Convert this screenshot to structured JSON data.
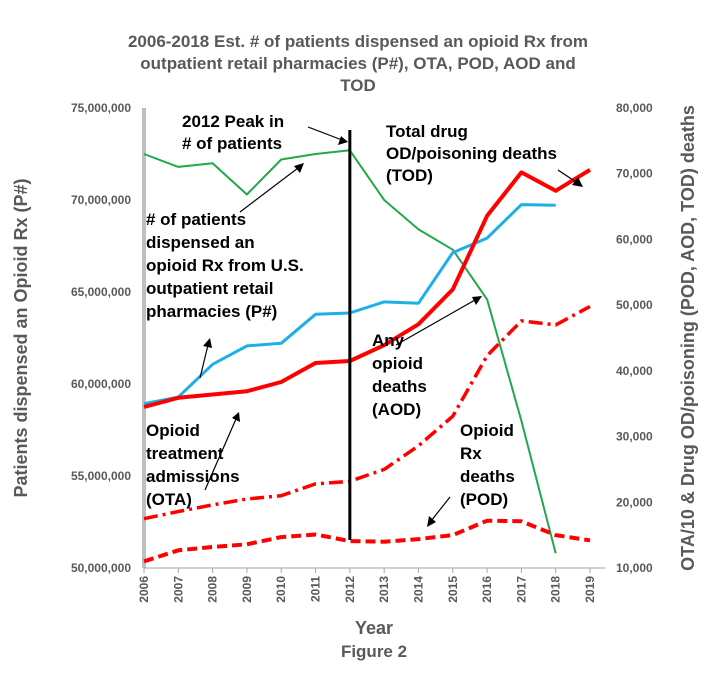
{
  "chart_data": {
    "type": "line",
    "title_lines": [
      "2006-2018 Est. # of patients dispensed an opioid Rx from",
      "outpatient retail pharmacies (P#), OTA, POD, AOD and",
      "TOD"
    ],
    "xlabel": "Year",
    "figure_label": "Figure 2",
    "ylabel_left": "Patients dispensed an Opioid Rx  (P#)",
    "ylabel_right": "OTA/10 & Drug OD/poisoning (POD, AOD, TOD) deaths",
    "x": [
      2006,
      2007,
      2008,
      2009,
      2010,
      2011,
      2012,
      2013,
      2014,
      2015,
      2016,
      2017,
      2018,
      2019
    ],
    "ylim_left": [
      50000000,
      75000000
    ],
    "ylim_right": [
      10000,
      80000
    ],
    "left_ticks": [
      "50,000,000",
      "55,000,000",
      "60,000,000",
      "65,000,000",
      "70,000,000",
      "75,000,000"
    ],
    "left_tick_values": [
      50000000,
      55000000,
      60000000,
      65000000,
      70000000,
      75000000
    ],
    "right_ticks": [
      "10,000",
      "20,000",
      "30,000",
      "40,000",
      "50,000",
      "60,000",
      "70,000",
      "80,000"
    ],
    "right_tick_values": [
      10000,
      20000,
      30000,
      40000,
      50000,
      60000,
      70000,
      80000
    ],
    "grid": false,
    "series": [
      {
        "axis": "left",
        "color": "#22a84a",
        "dash": "",
        "width": 2,
        "values": [
          72500000,
          71800000,
          72000000,
          70300000,
          72200000,
          72500000,
          72700000,
          70000000,
          68400000,
          67300000,
          64600000,
          58000000,
          50800000,
          null
        ]
      },
      {
        "axis": "right",
        "color": "#1cb0e6",
        "dash": "",
        "width": 3,
        "values": [
          35000,
          36000,
          41000,
          43800,
          44200,
          48600,
          48800,
          50500,
          50300,
          58000,
          60200,
          65300,
          65200,
          null
        ]
      },
      {
        "axis": "right",
        "color": "#ff0000",
        "dash": "",
        "width": 4,
        "values": [
          34500,
          35900,
          36400,
          36900,
          38300,
          41200,
          41500,
          43900,
          47100,
          52400,
          63600,
          70200,
          67400,
          70600
        ]
      },
      {
        "axis": "right",
        "color": "#ff0000",
        "dash": "14,5,3,5",
        "width": 3.5,
        "values": [
          17500,
          18600,
          19600,
          20500,
          21000,
          22800,
          23200,
          25000,
          28600,
          33100,
          42300,
          47600,
          47000,
          49800
        ]
      },
      {
        "axis": "right",
        "color": "#ff0000",
        "dash": "10,5",
        "width": 4,
        "values": [
          11000,
          12700,
          13200,
          13600,
          14700,
          15100,
          14100,
          14000,
          14400,
          15000,
          17200,
          17100,
          15000,
          14200
        ]
      }
    ],
    "peak_year": 2012,
    "annotations": [
      {
        "lines": [
          "2012 Peak in",
          "# of patients"
        ]
      },
      {
        "lines": [
          "Total drug",
          "OD/poisoning deaths",
          "(TOD)"
        ]
      },
      {
        "lines": [
          "# of patients",
          "dispensed an",
          "opioid Rx from U.S.",
          "outpatient retail",
          "pharmacies (P#)"
        ]
      },
      {
        "lines": [
          "Any",
          "opioid",
          "deaths",
          "(AOD)"
        ]
      },
      {
        "lines": [
          "Opioid",
          "treatment",
          "admissions",
          "(OTA)"
        ]
      },
      {
        "lines": [
          "Opioid",
          "Rx",
          "deaths",
          "(POD)"
        ]
      }
    ]
  }
}
